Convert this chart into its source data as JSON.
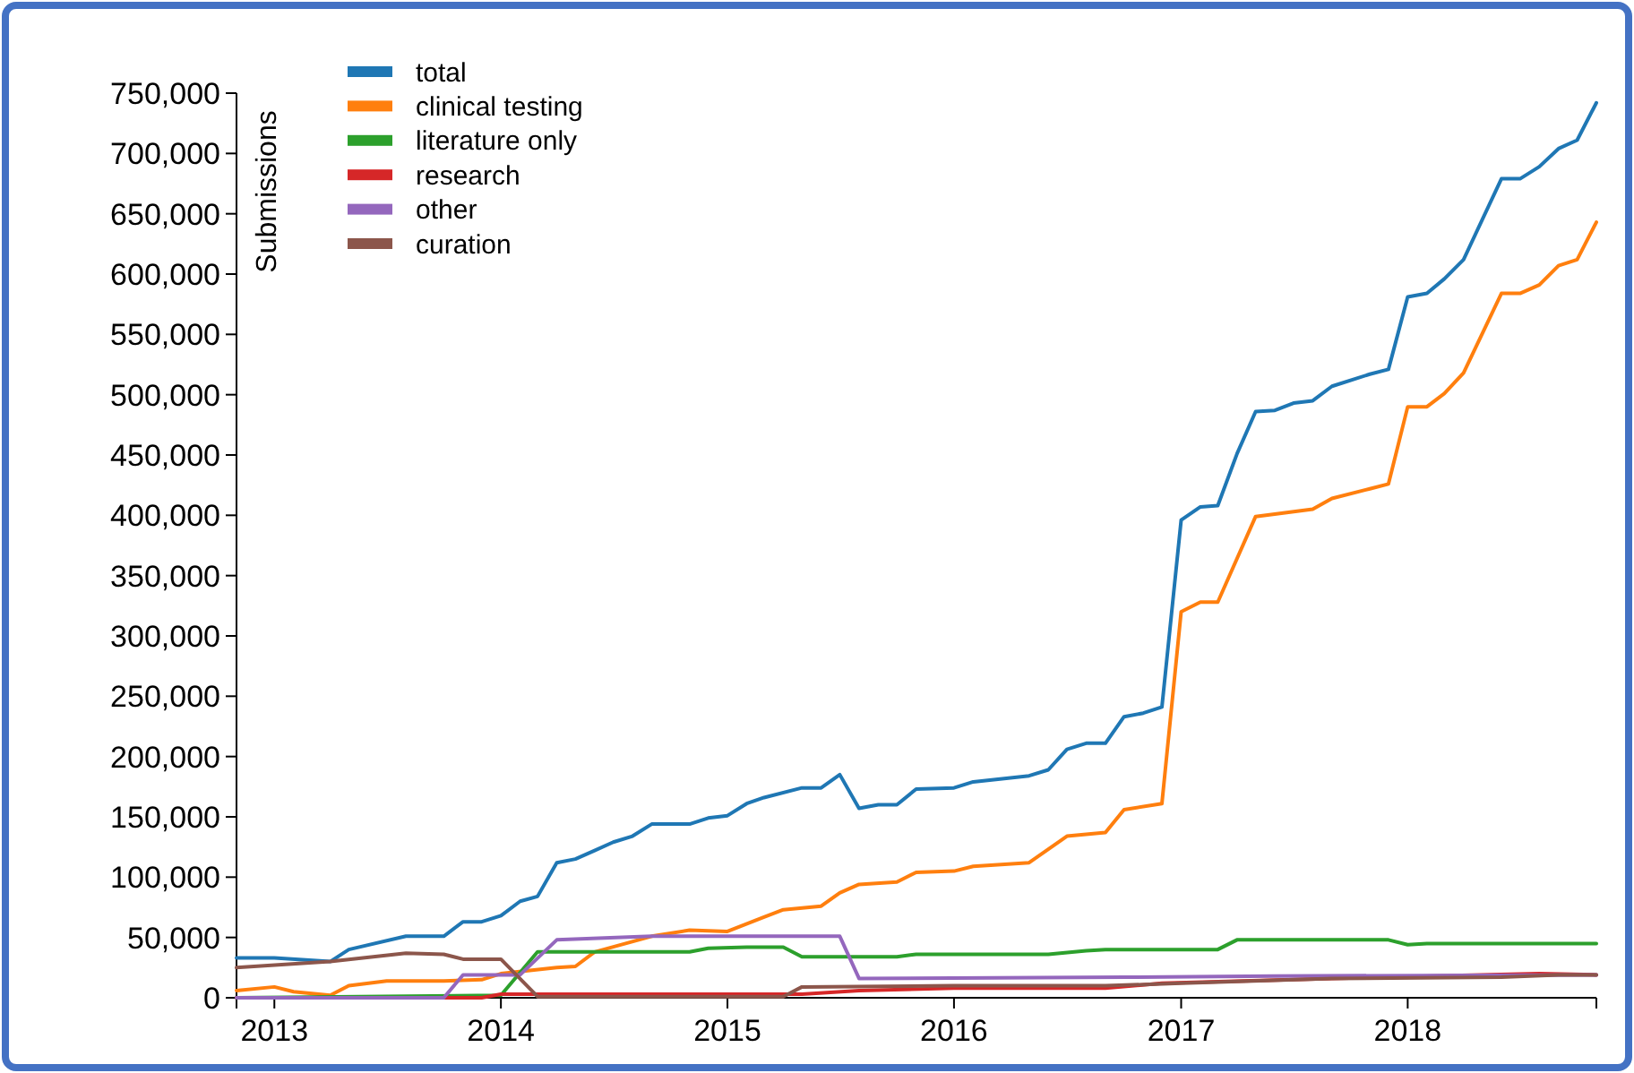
{
  "chart_data": {
    "type": "line",
    "ylabel": "Submissions",
    "xlim": [
      "2012-11",
      "2018-11"
    ],
    "xticks": [
      "2013",
      "2014",
      "2015",
      "2016",
      "2017",
      "2018"
    ],
    "ylim": [
      0,
      750000
    ],
    "yticks": [
      {
        "value": 0,
        "label": "0"
      },
      {
        "value": 50000,
        "label": "50,000"
      },
      {
        "value": 100000,
        "label": "100,000"
      },
      {
        "value": 150000,
        "label": "150,000"
      },
      {
        "value": 200000,
        "label": "200,000"
      },
      {
        "value": 250000,
        "label": "250,000"
      },
      {
        "value": 300000,
        "label": "300,000"
      },
      {
        "value": 350000,
        "label": "350,000"
      },
      {
        "value": 400000,
        "label": "400,000"
      },
      {
        "value": 450000,
        "label": "450,000"
      },
      {
        "value": 500000,
        "label": "500,000"
      },
      {
        "value": 550000,
        "label": "550,000"
      },
      {
        "value": 600000,
        "label": "600,000"
      },
      {
        "value": 650000,
        "label": "650,000"
      },
      {
        "value": 700000,
        "label": "700,000"
      },
      {
        "value": 750000,
        "label": "750,000"
      }
    ],
    "grid": false,
    "legend": "top left",
    "marker": "none",
    "line_style": "solid",
    "series": [
      {
        "name": "total",
        "color": "#1f77b4",
        "x": [
          "2012-11",
          "2013-01",
          "2013-04",
          "2013-05",
          "2013-08",
          "2013-10",
          "2013-11",
          "2013-12",
          "2014-01",
          "2014-02",
          "2014-03",
          "2014-04",
          "2014-05",
          "2014-06",
          "2014-07",
          "2014-08",
          "2014-09",
          "2014-11",
          "2014-12",
          "2015-01",
          "2015-02",
          "2015-03",
          "2015-05",
          "2015-06",
          "2015-07",
          "2015-08",
          "2015-09",
          "2015-10",
          "2015-11",
          "2016-01",
          "2016-02",
          "2016-05",
          "2016-06",
          "2016-07",
          "2016-08",
          "2016-09",
          "2016-10",
          "2016-11",
          "2016-12",
          "2017-01",
          "2017-02",
          "2017-03",
          "2017-04",
          "2017-05",
          "2017-06",
          "2017-07",
          "2017-08",
          "2017-09",
          "2017-11",
          "2017-12",
          "2018-01",
          "2018-02",
          "2018-03",
          "2018-04",
          "2018-06",
          "2018-07",
          "2018-08",
          "2018-09",
          "2018-10",
          "2018-11"
        ],
        "values": [
          33000,
          33000,
          30000,
          40000,
          51000,
          51000,
          63000,
          63000,
          68000,
          80000,
          84000,
          112000,
          115000,
          122000,
          129000,
          134000,
          144000,
          144000,
          149000,
          151000,
          161000,
          166000,
          174000,
          174000,
          185000,
          157000,
          160000,
          160000,
          173000,
          174000,
          179000,
          184000,
          189000,
          206000,
          211000,
          211000,
          233000,
          236000,
          241000,
          396000,
          407000,
          408000,
          451000,
          486000,
          487000,
          493000,
          495000,
          507000,
          517000,
          521000,
          581000,
          584000,
          596000,
          612000,
          679000,
          679000,
          689000,
          704000,
          711000,
          742000
        ]
      },
      {
        "name": "clinical testing",
        "color": "#ff7f0e",
        "x": [
          "2012-11",
          "2013-01",
          "2013-02",
          "2013-04",
          "2013-05",
          "2013-07",
          "2013-10",
          "2013-12",
          "2014-01",
          "2014-04",
          "2014-05",
          "2014-06",
          "2014-09",
          "2014-11",
          "2015-01",
          "2015-03",
          "2015-04",
          "2015-06",
          "2015-07",
          "2015-08",
          "2015-10",
          "2015-11",
          "2016-01",
          "2016-02",
          "2016-05",
          "2016-07",
          "2016-09",
          "2016-10",
          "2016-12",
          "2017-01",
          "2017-02",
          "2017-03",
          "2017-05",
          "2017-08",
          "2017-09",
          "2017-11",
          "2017-12",
          "2018-01",
          "2018-02",
          "2018-03",
          "2018-04",
          "2018-06",
          "2018-07",
          "2018-08",
          "2018-09",
          "2018-10",
          "2018-11"
        ],
        "values": [
          6000,
          9000,
          5000,
          2000,
          10000,
          14000,
          14000,
          15000,
          20000,
          25000,
          26000,
          38000,
          51000,
          56000,
          55000,
          67000,
          73000,
          76000,
          87000,
          94000,
          96000,
          104000,
          105000,
          109000,
          112000,
          134000,
          137000,
          156000,
          161000,
          320000,
          328000,
          328000,
          399000,
          405000,
          414000,
          422000,
          426000,
          490000,
          490000,
          501000,
          518000,
          584000,
          584000,
          591000,
          607000,
          612000,
          643000
        ]
      },
      {
        "name": "literature only",
        "color": "#2ca02c",
        "x": [
          "2012-11",
          "2014-01",
          "2014-03",
          "2014-11",
          "2014-12",
          "2015-02",
          "2015-04",
          "2015-05",
          "2015-10",
          "2015-11",
          "2016-06",
          "2016-08",
          "2016-09",
          "2017-03",
          "2017-04",
          "2017-12",
          "2018-01",
          "2018-02",
          "2018-11"
        ],
        "values": [
          0,
          2000,
          38000,
          38000,
          41000,
          42000,
          42000,
          34000,
          34000,
          36000,
          36000,
          39000,
          40000,
          40000,
          48000,
          48000,
          44000,
          45000,
          45000
        ]
      },
      {
        "name": "research",
        "color": "#d62728",
        "x": [
          "2012-11",
          "2013-12",
          "2014-01",
          "2015-05",
          "2015-08",
          "2016-01",
          "2016-09",
          "2016-12",
          "2017-09",
          "2018-08",
          "2018-11"
        ],
        "values": [
          0,
          0,
          3000,
          3000,
          6000,
          8000,
          8000,
          12000,
          16000,
          20000,
          19000
        ]
      },
      {
        "name": "other",
        "color": "#9467bd",
        "x": [
          "2012-11",
          "2013-10",
          "2013-11",
          "2014-02",
          "2014-04",
          "2014-09",
          "2015-07",
          "2015-08",
          "2016-10",
          "2017-06",
          "2018-11"
        ],
        "values": [
          0,
          0,
          19000,
          19000,
          48000,
          51000,
          51000,
          16000,
          17000,
          18000,
          19000
        ]
      },
      {
        "name": "curation",
        "color": "#8c564b",
        "x": [
          "2012-11",
          "2013-04",
          "2013-08",
          "2013-10",
          "2013-11",
          "2014-01",
          "2014-03",
          "2015-04",
          "2015-05",
          "2016-01",
          "2016-09",
          "2017-01",
          "2017-09",
          "2018-06",
          "2018-09",
          "2018-11"
        ],
        "values": [
          25000,
          30000,
          37000,
          36000,
          32000,
          32000,
          1000,
          1000,
          9000,
          10000,
          10000,
          12000,
          16000,
          17000,
          19000,
          19000
        ]
      }
    ]
  }
}
